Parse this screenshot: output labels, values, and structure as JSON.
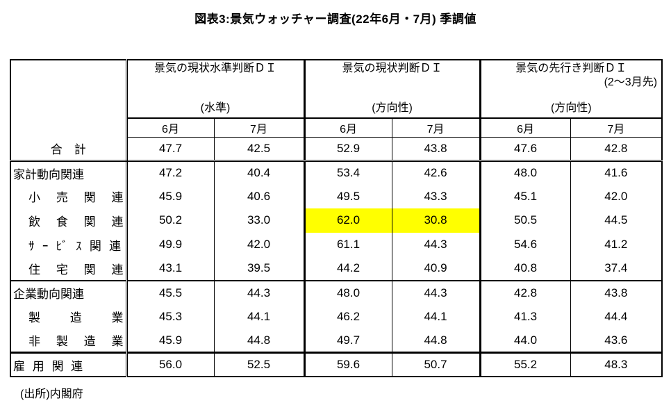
{
  "title": "図表3:景気ウォッチャー調査(22年6月・7月) 季調値",
  "source": "(出所)内閣府",
  "highlight_color": "#ffff00",
  "table": {
    "column_groups": [
      {
        "title": "景気の現状水準判断ＤＩ",
        "subtitle": "",
        "note": "(水準)",
        "months": [
          "6月",
          "7月"
        ]
      },
      {
        "title": "景気の現状判断ＤＩ",
        "subtitle": "",
        "note": "(方向性)",
        "months": [
          "6月",
          "7月"
        ]
      },
      {
        "title": "景気の先行き判断ＤＩ",
        "subtitle": "(2〜3月先)",
        "note": "(方向性)",
        "months": [
          "6月",
          "7月"
        ]
      }
    ],
    "rows": [
      {
        "label": "合　計",
        "values": [
          "47.7",
          "42.5",
          "52.9",
          "43.8",
          "47.6",
          "42.8"
        ]
      },
      {
        "label": "家計動向関連",
        "values": [
          "47.2",
          "40.4",
          "53.4",
          "42.6",
          "48.0",
          "41.6"
        ]
      },
      {
        "label": "小 売 関 連",
        "values": [
          "45.9",
          "40.6",
          "49.5",
          "43.3",
          "45.1",
          "42.0"
        ]
      },
      {
        "label": "飲 食 関 連",
        "values": [
          "50.2",
          "33.0",
          "62.0",
          "30.8",
          "50.5",
          "44.5"
        ],
        "highlighted": [
          2,
          3
        ]
      },
      {
        "label": "ｻ ｰ ﾋﾞ ｽ 関 連",
        "values": [
          "49.9",
          "42.0",
          "61.1",
          "44.3",
          "54.6",
          "41.2"
        ]
      },
      {
        "label": "住 宅 関 連",
        "values": [
          "43.1",
          "39.5",
          "44.2",
          "40.9",
          "40.8",
          "37.4"
        ]
      },
      {
        "label": "企業動向関連",
        "values": [
          "45.5",
          "44.3",
          "48.0",
          "44.3",
          "42.8",
          "43.8"
        ]
      },
      {
        "label": "製 造 業",
        "values": [
          "45.3",
          "44.1",
          "46.2",
          "44.1",
          "41.3",
          "44.4"
        ]
      },
      {
        "label": "非 製 造 業",
        "values": [
          "45.9",
          "44.8",
          "49.7",
          "44.8",
          "44.0",
          "43.6"
        ]
      },
      {
        "label": "雇 用 関 連",
        "values": [
          "56.0",
          "52.5",
          "59.6",
          "50.7",
          "55.2",
          "48.3"
        ]
      }
    ]
  }
}
